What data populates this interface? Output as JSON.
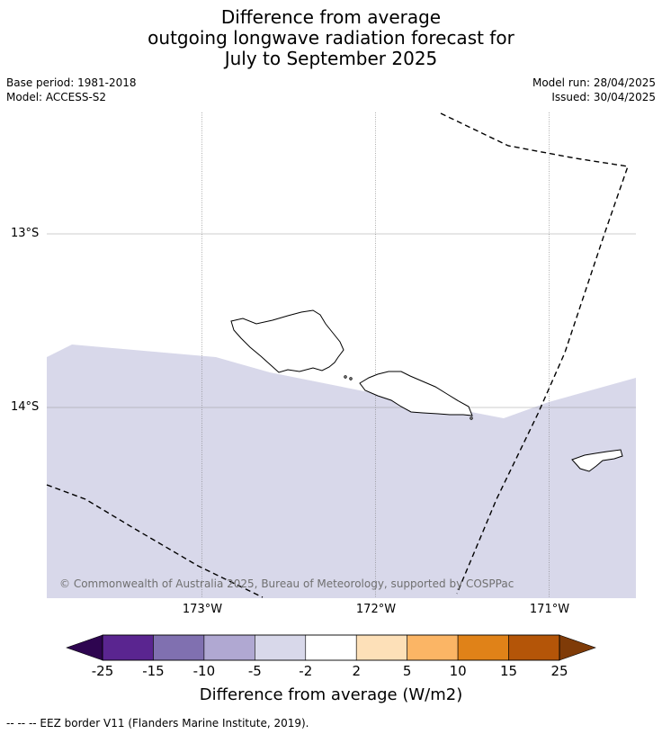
{
  "title_lines": [
    "Difference from average",
    "outgoing longwave radiation forecast for",
    "July to September 2025"
  ],
  "meta": {
    "base_period": "Base period: 1981-2018",
    "model": "Model: ACCESS-S2",
    "model_run": "Model run: 28/04/2025",
    "issued": "Issued: 30/04/2025"
  },
  "map": {
    "lat_labels": [
      "13°S",
      "14°S"
    ],
    "lon_labels": [
      "173°W",
      "172°W",
      "171°W"
    ],
    "fill_color": "#d8d8ea",
    "category": "-5 to -2",
    "copyright": "© Commonwealth of Australia 2025, Bureau of Meteorology, supported by COSPPac"
  },
  "colorbar": {
    "ticks": [
      "-25",
      "-15",
      "-10",
      "-5",
      "-2",
      "2",
      "5",
      "10",
      "15",
      "25"
    ],
    "colors": [
      "#5a2590",
      "#8070b0",
      "#b0a8d2",
      "#d8d8ea",
      "#ffffff",
      "#fde0b8",
      "#fbb565",
      "#e08218",
      "#b45508"
    ],
    "low_extend_color": "#2e0550",
    "high_extend_color": "#7f3b08",
    "label": "Difference from average (W/m2)"
  },
  "footnote": "--  --  -- EEZ border V11 (Flanders Marine Institute, 2019)."
}
